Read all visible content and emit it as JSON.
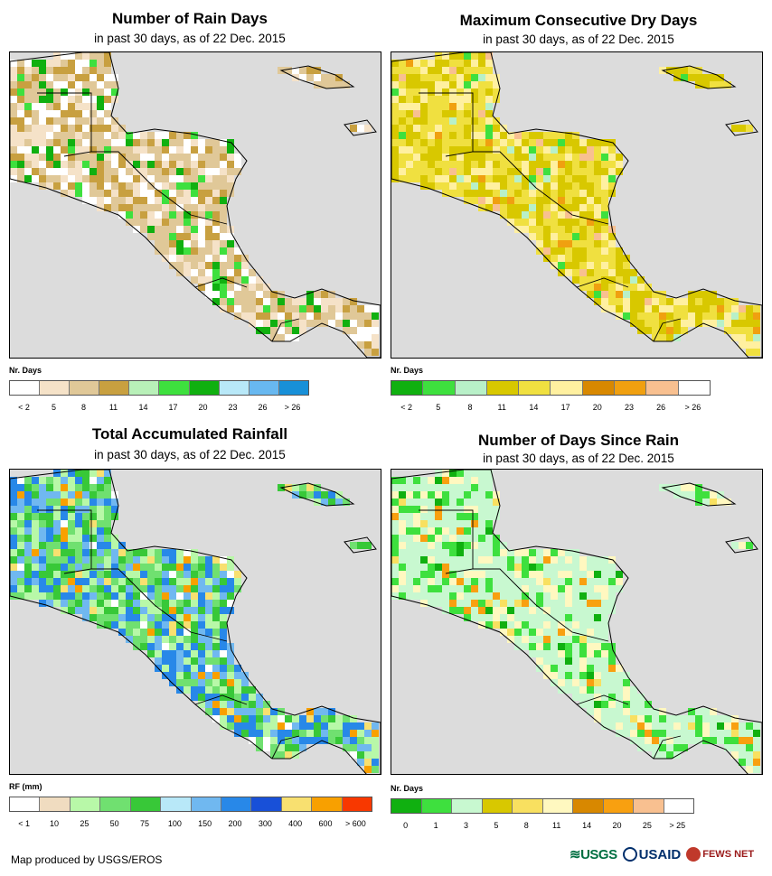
{
  "panels": [
    {
      "id": "rain-days",
      "title": "Number of Rain Days",
      "subtitle": "in past 30 days, as of 22 Dec. 2015",
      "legend_title": "Nr. Days",
      "legend_colors": [
        "#ffffff",
        "#f5e2c8",
        "#e0c898",
        "#c8a040",
        "#b8f0b8",
        "#3ee03e",
        "#10b010",
        "#b8e8f8",
        "#68b8f0",
        "#1890d8"
      ],
      "legend_labels": [
        "< 2",
        "5",
        "8",
        "11",
        "14",
        "17",
        "20",
        "23",
        "26",
        "> 26"
      ],
      "dominant": [
        "#ffffff",
        "#f5e2c8",
        "#e0c898",
        "#e0c898",
        "#c8a040"
      ],
      "accent": [
        "#3ee03e",
        "#10b010"
      ]
    },
    {
      "id": "max-dry-days",
      "title": "Maximum Consecutive Dry Days",
      "subtitle": "in past 30 days, as of 22 Dec. 2015",
      "legend_title": "Nr. Days",
      "legend_colors": [
        "#10b010",
        "#3ee03e",
        "#b8f0c8",
        "#d8c800",
        "#f0e040",
        "#fff0a0",
        "#d88800",
        "#f0a010",
        "#f8c090",
        "#ffffff"
      ],
      "legend_labels": [
        "< 2",
        "5",
        "8",
        "11",
        "14",
        "17",
        "20",
        "23",
        "26",
        "> 26"
      ],
      "dominant": [
        "#d8c800",
        "#d8c800",
        "#f0e040",
        "#fff0a0",
        "#f0e040"
      ],
      "accent": [
        "#f0a010",
        "#f8c090",
        "#b8f0c8",
        "#3ee03e"
      ]
    },
    {
      "id": "total-rainfall",
      "title": "Total Accumulated Rainfall",
      "subtitle": "in past 30 days, as of 22 Dec. 2015",
      "legend_title": "RF (mm)",
      "legend_colors": [
        "#ffffff",
        "#f0dcc0",
        "#b8f8a8",
        "#70e070",
        "#38c838",
        "#b8e8f8",
        "#70b8f0",
        "#2888e8",
        "#1850d8",
        "#f8e070",
        "#f8a000",
        "#f83800"
      ],
      "legend_labels": [
        "< 1",
        "10",
        "25",
        "50",
        "75",
        "100",
        "150",
        "200",
        "300",
        "400",
        "600",
        "> 600"
      ],
      "dominant": [
        "#b8f8a8",
        "#70e070",
        "#38c838",
        "#70b8f0",
        "#2888e8"
      ],
      "accent": [
        "#ffffff",
        "#f8a000",
        "#f8e070"
      ]
    },
    {
      "id": "days-since-rain",
      "title": "Number of Days Since Rain",
      "subtitle": "in past 30 days, as of 22 Dec. 2015",
      "legend_title": "Nr. Days",
      "legend_colors": [
        "#10b010",
        "#3ee03e",
        "#c8f8d0",
        "#d8c800",
        "#f8e060",
        "#fff8c0",
        "#d88800",
        "#f8a010",
        "#f8c090",
        "#ffffff"
      ],
      "legend_labels": [
        "0",
        "1",
        "3",
        "5",
        "8",
        "11",
        "14",
        "20",
        "25",
        "> 25"
      ],
      "dominant": [
        "#c8f8d0",
        "#c8f8d0",
        "#c8f8d0",
        "#fff8c0",
        "#3ee03e"
      ],
      "accent": [
        "#f8a010",
        "#f8e060",
        "#10b010"
      ]
    }
  ],
  "footer": {
    "credit": "Map produced by USGS/EROS",
    "logo_usgs": "≋USGS",
    "logo_usaid": "USAID",
    "logo_fews": "FEWS NET"
  }
}
